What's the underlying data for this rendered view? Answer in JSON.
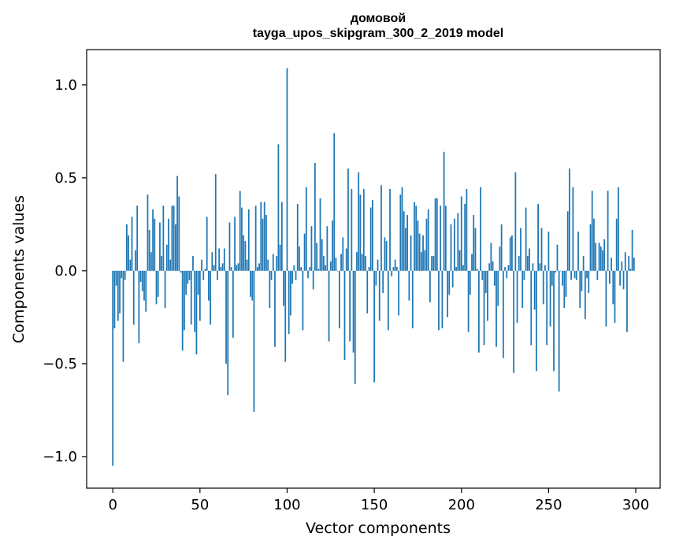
{
  "chart_data": {
    "type": "bar",
    "title": [
      "домовой",
      "tayga_upos_skipgram_300_2_2019 model"
    ],
    "xlabel": "Vector components",
    "ylabel": "Components values",
    "xlim": [
      -15,
      314
    ],
    "ylim": [
      -1.17,
      1.19
    ],
    "xticks": [
      0,
      50,
      100,
      150,
      200,
      250,
      300
    ],
    "yticks": [
      -1.0,
      -0.5,
      0.0,
      0.5,
      1.0
    ],
    "ytick_labels": [
      "−1.0",
      "−0.5",
      "0.0",
      "0.5",
      "1.0"
    ],
    "grid": false,
    "bar_color": "#1f77b4",
    "series": [
      {
        "values": [
          -1.05,
          -0.31,
          -0.08,
          -0.27,
          -0.23,
          -0.04,
          -0.49,
          -0.05,
          0.25,
          0.19,
          0.06,
          0.29,
          -0.29,
          0.11,
          0.35,
          -0.39,
          -0.06,
          -0.11,
          -0.16,
          -0.22,
          0.41,
          0.22,
          0.1,
          0.33,
          0.28,
          -0.18,
          -0.14,
          0.26,
          0.08,
          0.35,
          -0.2,
          0.14,
          0.28,
          0.06,
          0.35,
          0.35,
          0.25,
          0.51,
          0.4,
          -0.01,
          -0.43,
          -0.32,
          -0.13,
          -0.07,
          -0.05,
          -0.29,
          0.08,
          -0.33,
          -0.45,
          -0.13,
          -0.27,
          0.06,
          -0.05,
          0.01,
          0.29,
          -0.16,
          -0.29,
          0.1,
          0.03,
          0.52,
          -0.05,
          0.12,
          0.02,
          0.04,
          0.12,
          -0.5,
          -0.67,
          0.26,
          0.02,
          -0.36,
          0.29,
          0.03,
          0.04,
          0.43,
          0.34,
          0.19,
          0.16,
          0.06,
          0.33,
          -0.14,
          -0.16,
          -0.76,
          0.35,
          0.02,
          0.04,
          0.37,
          0.28,
          0.37,
          0.3,
          0.06,
          -0.2,
          -0.05,
          0.09,
          -0.41,
          0.08,
          0.68,
          0.14,
          0.37,
          -0.19,
          -0.49,
          1.09,
          -0.34,
          -0.24,
          -0.07,
          0.03,
          -0.05,
          0.36,
          0.13,
          0.02,
          -0.32,
          0.2,
          0.45,
          -0.04,
          0.02,
          0.24,
          -0.1,
          0.58,
          0.15,
          0.01,
          0.39,
          0.17,
          0.08,
          0.03,
          0.24,
          -0.38,
          0.05,
          0.27,
          0.74,
          0.07,
          0.0,
          -0.31,
          0.09,
          0.18,
          -0.48,
          0.12,
          0.55,
          -0.38,
          0.44,
          -0.44,
          -0.61,
          0.1,
          0.53,
          0.41,
          0.09,
          0.44,
          0.08,
          -0.23,
          0.02,
          0.34,
          0.38,
          -0.6,
          -0.08,
          0.06,
          -0.27,
          0.46,
          -0.12,
          0.18,
          0.16,
          -0.32,
          0.44,
          -0.03,
          0.02,
          0.06,
          0.02,
          -0.24,
          0.41,
          0.45,
          0.32,
          0.23,
          0.3,
          -0.16,
          0.19,
          -0.31,
          0.37,
          0.35,
          0.27,
          0.2,
          0.1,
          0.19,
          0.11,
          0.28,
          0.33,
          -0.17,
          0.08,
          0.08,
          0.39,
          0.39,
          -0.32,
          0.35,
          -0.31,
          0.64,
          0.35,
          -0.25,
          -0.13,
          0.25,
          -0.09,
          0.28,
          0.02,
          0.31,
          0.11,
          0.4,
          0.03,
          0.36,
          0.44,
          -0.33,
          -0.13,
          0.09,
          0.3,
          0.23,
          0.01,
          -0.44,
          0.45,
          -0.05,
          -0.4,
          -0.12,
          -0.27,
          0.04,
          0.15,
          0.05,
          -0.08,
          -0.41,
          -0.19,
          0.13,
          0.25,
          -0.47,
          0.02,
          -0.04,
          0.03,
          0.18,
          0.19,
          -0.55,
          0.53,
          -0.28,
          0.08,
          0.23,
          -0.2,
          -0.05,
          0.34,
          0.08,
          0.12,
          -0.4,
          0.04,
          -0.21,
          -0.54,
          0.36,
          0.04,
          0.23,
          -0.18,
          0.03,
          -0.4,
          0.21,
          -0.3,
          -0.08,
          -0.54,
          -0.01,
          0.14,
          -0.65,
          0.0,
          -0.08,
          -0.2,
          -0.14,
          0.32,
          0.55,
          -0.05,
          0.45,
          -0.04,
          -0.05,
          0.21,
          -0.2,
          -0.11,
          0.08,
          -0.26,
          -0.04,
          -0.12,
          0.25,
          0.43,
          0.28,
          0.15,
          -0.05,
          0.15,
          0.13,
          0.11,
          0.17,
          -0.3,
          0.43,
          -0.07,
          0.07,
          -0.18,
          -0.28,
          0.28,
          0.45,
          -0.08,
          0.05,
          -0.1,
          0.1,
          -0.33,
          0.08,
          0.01,
          0.22,
          0.07
        ]
      }
    ]
  }
}
